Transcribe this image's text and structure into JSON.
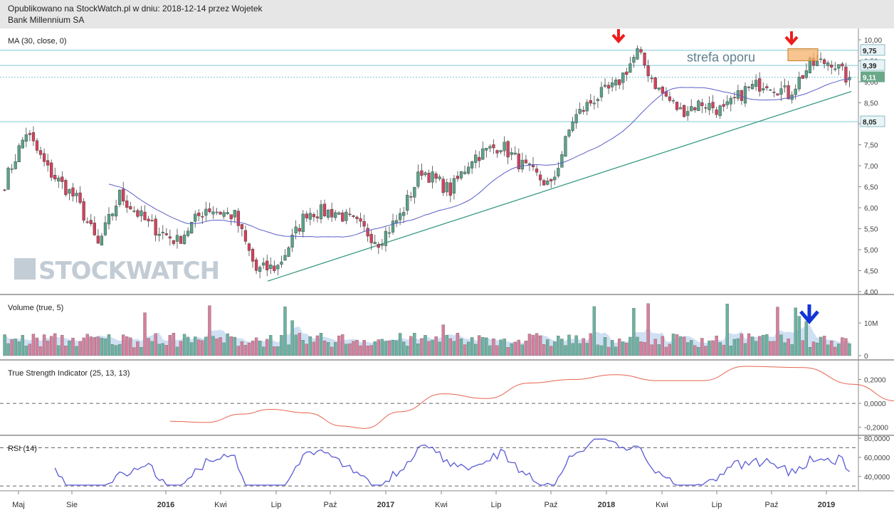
{
  "header": {
    "line1": "Opublikowano na StockWatch.pl w dniu: 2018-12-14 przez Wojetek",
    "line2": "Bank Millennium SA"
  },
  "watermark": "STOCKWATCH",
  "colors": {
    "up": "#5aa28a",
    "down": "#d2425d",
    "ma": "#5b5fc7",
    "trend": "#3a9a86",
    "level": "#7ec9d6",
    "tsi": "#e8644f",
    "rsi": "#5a5ad6",
    "vol_up": "#6bb3a1",
    "vol_down": "#d77f9c",
    "vol_ma": "#a9c6ea",
    "arrow_red": "#ee1c1c",
    "arrow_blue": "#1434d6",
    "zone": "#f6b26b"
  },
  "chart_data": [
    {
      "type": "candlestick",
      "title": "MA (30, close, 0)",
      "y_ticks": [
        "4,00",
        "4,50",
        "5,00",
        "5,50",
        "6,00",
        "6,50",
        "7,00",
        "7,50",
        "8,00",
        "8,50",
        "9,00",
        "9,50",
        "10,00"
      ],
      "ylim": [
        4.0,
        10.0
      ],
      "x_labels": [
        "Maj",
        "Sie",
        "2016",
        "Kwi",
        "Lip",
        "Paź",
        "2017",
        "Kwi",
        "Lip",
        "Paź",
        "2018",
        "Kwi",
        "Lip",
        "Paź",
        "2019"
      ],
      "levels": [
        {
          "label": "9,75",
          "value": 9.75,
          "style": "solid"
        },
        {
          "label": "9,39",
          "value": 9.39,
          "style": "solid"
        },
        {
          "label": "9,11",
          "value": 9.11,
          "style": "dotted",
          "current": true
        },
        {
          "label": "8,05",
          "value": 8.05,
          "style": "solid"
        }
      ],
      "annotation": "strefa oporu",
      "anchors": [
        {
          "i": 0,
          "v": 6.6
        },
        {
          "i": 6,
          "v": 7.8
        },
        {
          "i": 12,
          "v": 6.9
        },
        {
          "i": 20,
          "v": 6.2
        },
        {
          "i": 26,
          "v": 5.1
        },
        {
          "i": 32,
          "v": 6.3
        },
        {
          "i": 40,
          "v": 5.6
        },
        {
          "i": 48,
          "v": 5.2
        },
        {
          "i": 56,
          "v": 6.0
        },
        {
          "i": 64,
          "v": 5.8
        },
        {
          "i": 70,
          "v": 4.5
        },
        {
          "i": 76,
          "v": 4.6
        },
        {
          "i": 84,
          "v": 5.9
        },
        {
          "i": 92,
          "v": 5.9
        },
        {
          "i": 98,
          "v": 5.6
        },
        {
          "i": 104,
          "v": 5.2
        },
        {
          "i": 110,
          "v": 5.8
        },
        {
          "i": 116,
          "v": 6.9
        },
        {
          "i": 124,
          "v": 6.4
        },
        {
          "i": 130,
          "v": 7.2
        },
        {
          "i": 138,
          "v": 7.5
        },
        {
          "i": 144,
          "v": 7.0
        },
        {
          "i": 152,
          "v": 6.5
        },
        {
          "i": 158,
          "v": 8.1
        },
        {
          "i": 164,
          "v": 8.6
        },
        {
          "i": 170,
          "v": 8.9
        },
        {
          "i": 176,
          "v": 9.7
        },
        {
          "i": 182,
          "v": 8.8
        },
        {
          "i": 188,
          "v": 8.3
        },
        {
          "i": 194,
          "v": 8.5
        },
        {
          "i": 200,
          "v": 8.3
        },
        {
          "i": 206,
          "v": 8.8
        },
        {
          "i": 212,
          "v": 9.0
        },
        {
          "i": 218,
          "v": 8.7
        },
        {
          "i": 224,
          "v": 9.4
        },
        {
          "i": 230,
          "v": 9.5
        },
        {
          "i": 234,
          "v": 9.11
        }
      ],
      "ma_label": "MA (30)"
    },
    {
      "type": "bar",
      "title": "Volume (true, 5)",
      "y_ticks": [
        "10M",
        "0"
      ],
      "ylim": [
        0,
        17000000
      ]
    },
    {
      "type": "line",
      "title": "True Strength Indicator (25, 13, 13)",
      "y_ticks": [
        "0,2000",
        "0,0000",
        "-0,2000"
      ],
      "ylim": [
        -0.22,
        0.34
      ],
      "points": [
        [
          46,
          -0.15
        ],
        [
          56,
          -0.16
        ],
        [
          66,
          -0.09
        ],
        [
          74,
          -0.05
        ],
        [
          84,
          -0.08
        ],
        [
          94,
          -0.19
        ],
        [
          100,
          -0.21
        ],
        [
          110,
          -0.07
        ],
        [
          122,
          0.08
        ],
        [
          134,
          0.04
        ],
        [
          146,
          0.17
        ],
        [
          158,
          0.2
        ],
        [
          170,
          0.24
        ],
        [
          182,
          0.19
        ],
        [
          194,
          0.19
        ],
        [
          206,
          0.31
        ],
        [
          222,
          0.3
        ],
        [
          236,
          0.16
        ],
        [
          248,
          0.02
        ],
        [
          258,
          0.03
        ],
        [
          272,
          0.08
        ],
        [
          284,
          0.1
        ]
      ]
    },
    {
      "type": "line",
      "title": "RSI (14)",
      "y_ticks": [
        "80,0000",
        "60,0000",
        "40,0000"
      ],
      "ylim": [
        28,
        80
      ],
      "guides": [
        70,
        30
      ]
    }
  ]
}
